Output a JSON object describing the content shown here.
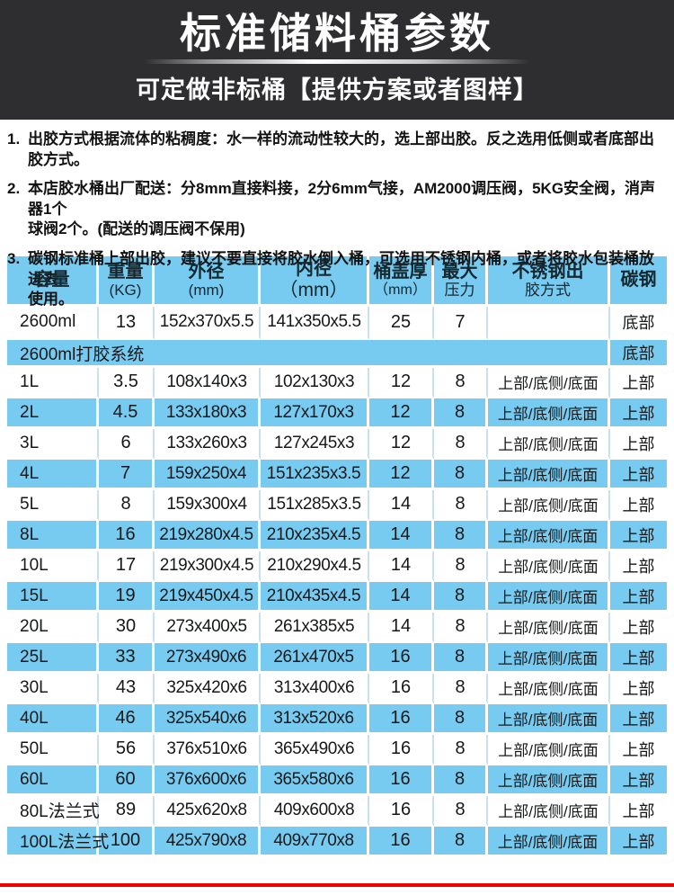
{
  "hero": {
    "title": "标准储料桶参数",
    "subtitle": "可定做非标桶【提供方案或者图样】"
  },
  "notes": [
    {
      "num": "1.",
      "lines": [
        "出胶方式根据流体的粘稠度：水一样的流动性较大的，选上部出胶。反之选用低侧或者底部出胶方式。"
      ]
    },
    {
      "num": "2.",
      "lines": [
        "本店胶水桶出厂配送：分8mm直接料接，2分6mm气接，AM2000调压阀，5KG安全阀，消声器1个",
        "球阀2个。(配送的调压阀不保用)"
      ]
    },
    {
      "num": "3.",
      "lines": [
        "碳钢标准桶上部出胶，建议不要直接将胶水倒入桶，可选用不锈钢内桶，或者将胶水包装桶放进去",
        "使用。"
      ]
    }
  ],
  "table": {
    "header": [
      {
        "line1": "容量",
        "line2": ""
      },
      {
        "line1": "重量",
        "line2": "(KG)"
      },
      {
        "line1": "外径",
        "line2": "(mm)"
      },
      {
        "line1": "内径",
        "line2": "（mm）"
      },
      {
        "line1": "桶盖厚",
        "line2": "（mm）"
      },
      {
        "line1": "最大",
        "line2": "压力"
      },
      {
        "line1": "不锈钢出",
        "line2": "胶方式"
      },
      {
        "line1": "碳钢",
        "line2": ""
      }
    ],
    "rows": [
      {
        "cells": [
          "2600ml",
          "13",
          "152x370x5.5",
          "141x350x5.5",
          "25",
          "7",
          "",
          "底部"
        ]
      },
      {
        "span": "2600ml打胶系统",
        "carbon": "底部"
      },
      {
        "cells": [
          "1L",
          "3.5",
          "108x140x3",
          "102x130x3",
          "12",
          "8",
          "上部/底侧/底面",
          "上部"
        ]
      },
      {
        "cells": [
          "2L",
          "4.5",
          "133x180x3",
          "127x170x3",
          "12",
          "8",
          "上部/底侧/底面",
          "上部"
        ]
      },
      {
        "cells": [
          "3L",
          "6",
          "133x260x3",
          "127x245x3",
          "12",
          "8",
          "上部/底侧/底面",
          "上部"
        ]
      },
      {
        "cells": [
          "4L",
          "7",
          "159x250x4",
          "151x235x3.5",
          "12",
          "8",
          "上部/底侧/底面",
          "上部"
        ]
      },
      {
        "cells": [
          "5L",
          "8",
          "159x300x4",
          "151x285x3.5",
          "14",
          "8",
          "上部/底侧/底面",
          "上部"
        ]
      },
      {
        "cells": [
          "8L",
          "16",
          "219x280x4.5",
          "210x235x4.5",
          "14",
          "8",
          "上部/底侧/底面",
          "上部"
        ]
      },
      {
        "cells": [
          "10L",
          "17",
          "219x300x4.5",
          "210x290x4.5",
          "14",
          "8",
          "上部/底侧/底面",
          "上部"
        ]
      },
      {
        "cells": [
          "15L",
          "19",
          "219x450x4.5",
          "210x435x4.5",
          "14",
          "8",
          "上部/底侧/底面",
          "上部"
        ]
      },
      {
        "cells": [
          "20L",
          "30",
          "273x400x5",
          "261x385x5",
          "14",
          "8",
          "上部/底侧/底面",
          "上部"
        ]
      },
      {
        "cells": [
          "25L",
          "33",
          "273x490x6",
          "261x470x5",
          "16",
          "8",
          "上部/底侧/底面",
          "上部"
        ]
      },
      {
        "cells": [
          "30L",
          "43",
          "325x420x6",
          "313x400x6",
          "16",
          "8",
          "上部/底侧/底面",
          "上部"
        ]
      },
      {
        "cells": [
          "40L",
          "46",
          "325x540x6",
          "313x520x6",
          "16",
          "8",
          "上部/底侧/底面",
          "上部"
        ]
      },
      {
        "cells": [
          "50L",
          "56",
          "376x510x6",
          "365x490x6",
          "16",
          "8",
          "上部/底侧/底面",
          "上部"
        ]
      },
      {
        "cells": [
          "60L",
          "60",
          "376x600x6",
          "365x580x6",
          "16",
          "8",
          "上部/底侧/底面",
          "上部"
        ]
      },
      {
        "cells": [
          "80L法兰式",
          "89",
          "425x620x8",
          "409x600x8",
          "16",
          "8",
          "上部/底侧/底面",
          "上部"
        ]
      },
      {
        "cells": [
          "100L法兰式",
          "100",
          "425x790x8",
          "409x770x8",
          "16",
          "8",
          "上部/底侧/底面",
          "上部"
        ]
      }
    ]
  },
  "colors": {
    "accent_blue": "#77cbf0",
    "hero_background": "#2e2e30",
    "divider_red": "#ee0202",
    "row_separator": "#c9e1ee"
  }
}
